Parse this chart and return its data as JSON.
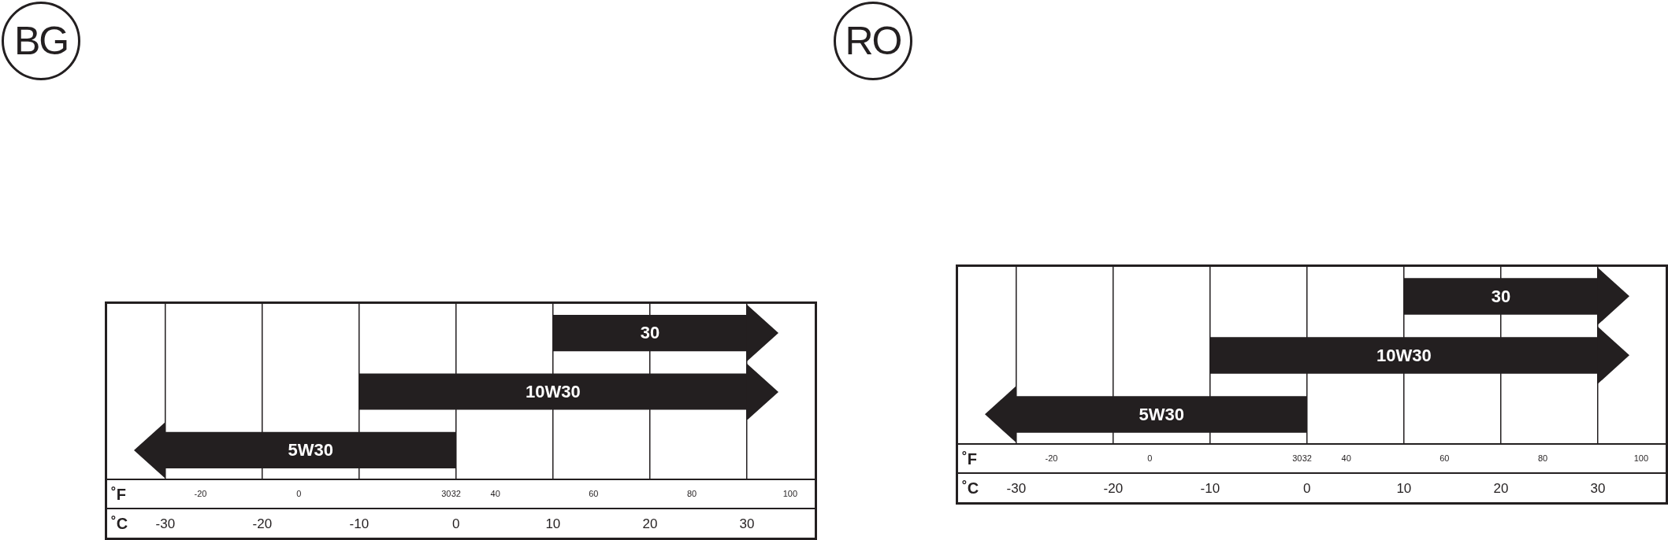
{
  "chart_data": [
    {
      "type": "bar",
      "title": "BG",
      "orientation": "horizontal",
      "categories": [
        "30",
        "10W30",
        "5W30"
      ],
      "series": [
        {
          "color": "#231f20",
          "values": [
            20,
            40,
            30
          ],
          "base": [
            10,
            -10,
            -30
          ]
        }
      ],
      "xlim": [
        -36,
        37
      ],
      "xticks": [
        -30,
        -20,
        -10,
        0,
        10,
        20,
        30
      ],
      "xlabel": "˚C",
      "x2lim": [
        -39,
        105
      ],
      "x2ticks": [
        -20,
        0,
        30,
        32,
        40,
        60,
        80,
        100
      ],
      "x2label": "˚F",
      "grid": "x",
      "legend": false,
      "tick_labels": "x"
    },
    {
      "type": "bar",
      "title": "RO",
      "orientation": "horizontal",
      "categories": [
        "30",
        "10W30",
        "5W30"
      ],
      "series": [
        {
          "color": "#231f20",
          "values": [
            20,
            40,
            30
          ],
          "base": [
            10,
            -10,
            -30
          ]
        }
      ],
      "xlim": [
        -36,
        37
      ],
      "xticks": [
        -30,
        -20,
        -10,
        0,
        10,
        20,
        30
      ],
      "xlabel": "˚C",
      "x2lim": [
        -39,
        105
      ],
      "x2ticks": [
        -20,
        0,
        30,
        32,
        40,
        60,
        80,
        100
      ],
      "x2label": "˚F",
      "grid": "x",
      "legend": false,
      "tick_labels": "x"
    }
  ]
}
